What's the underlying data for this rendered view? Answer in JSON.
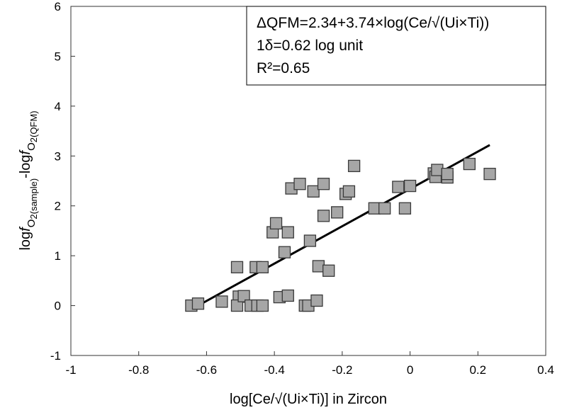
{
  "chart_data": {
    "type": "scatter",
    "xlabel": "log[Ce/√(Ui×Ti)] in Zircon",
    "ylabel": {
      "parts": [
        {
          "text": "log",
          "style": "normal",
          "baseline": "normal"
        },
        {
          "text": "f",
          "style": "italic",
          "baseline": "normal"
        },
        {
          "text": "O",
          "style": "normal",
          "baseline": "sub"
        },
        {
          "text": "2(sample)",
          "style": "normal",
          "baseline": "subsub"
        },
        {
          "text": "-log",
          "style": "normal",
          "baseline": "normal"
        },
        {
          "text": "f",
          "style": "italic",
          "baseline": "normal"
        },
        {
          "text": "O",
          "style": "normal",
          "baseline": "sub"
        },
        {
          "text": "2(QFM)",
          "style": "normal",
          "baseline": "subsub"
        }
      ]
    },
    "xlim": [
      -1,
      0.4
    ],
    "ylim": [
      -1,
      6
    ],
    "xticks": [
      "-1",
      "-0.8",
      "-0.6",
      "-0.4",
      "-0.2",
      "0",
      "0.2",
      "0.4"
    ],
    "yticks": [
      "-1",
      "0",
      "1",
      "2",
      "3",
      "4",
      "5",
      "6"
    ],
    "grid": false,
    "marker": {
      "shape": "square",
      "fill": "#a6a6a6",
      "stroke": "#3a3a3a"
    },
    "points": [
      {
        "x": -0.645,
        "y": 0.0
      },
      {
        "x": -0.625,
        "y": 0.04
      },
      {
        "x": -0.555,
        "y": 0.08
      },
      {
        "x": -0.51,
        "y": 0.77
      },
      {
        "x": -0.505,
        "y": 0.18
      },
      {
        "x": -0.51,
        "y": 0.0
      },
      {
        "x": -0.49,
        "y": 0.19
      },
      {
        "x": -0.47,
        "y": 0.0
      },
      {
        "x": -0.455,
        "y": 0.77
      },
      {
        "x": -0.45,
        "y": 0.0
      },
      {
        "x": -0.435,
        "y": 0.0
      },
      {
        "x": -0.435,
        "y": 0.77
      },
      {
        "x": -0.405,
        "y": 1.47
      },
      {
        "x": -0.395,
        "y": 1.65
      },
      {
        "x": -0.385,
        "y": 0.17
      },
      {
        "x": -0.37,
        "y": 1.07
      },
      {
        "x": -0.36,
        "y": 1.47
      },
      {
        "x": -0.36,
        "y": 0.2
      },
      {
        "x": -0.35,
        "y": 2.35
      },
      {
        "x": -0.325,
        "y": 2.44
      },
      {
        "x": -0.31,
        "y": 0.0
      },
      {
        "x": -0.3,
        "y": 0.0
      },
      {
        "x": -0.295,
        "y": 1.3
      },
      {
        "x": -0.285,
        "y": 2.29
      },
      {
        "x": -0.275,
        "y": 0.1
      },
      {
        "x": -0.27,
        "y": 0.79
      },
      {
        "x": -0.255,
        "y": 1.8
      },
      {
        "x": -0.255,
        "y": 2.44
      },
      {
        "x": -0.24,
        "y": 0.7
      },
      {
        "x": -0.215,
        "y": 1.87
      },
      {
        "x": -0.19,
        "y": 2.24
      },
      {
        "x": -0.18,
        "y": 2.29
      },
      {
        "x": -0.165,
        "y": 2.8
      },
      {
        "x": -0.105,
        "y": 1.95
      },
      {
        "x": -0.075,
        "y": 1.95
      },
      {
        "x": -0.035,
        "y": 2.38
      },
      {
        "x": -0.015,
        "y": 1.95
      },
      {
        "x": 0.0,
        "y": 2.4
      },
      {
        "x": 0.07,
        "y": 2.65
      },
      {
        "x": 0.075,
        "y": 2.58
      },
      {
        "x": 0.08,
        "y": 2.72
      },
      {
        "x": 0.11,
        "y": 2.57
      },
      {
        "x": 0.11,
        "y": 2.64
      },
      {
        "x": 0.175,
        "y": 2.84
      },
      {
        "x": 0.235,
        "y": 2.64
      }
    ],
    "fit_line": {
      "x": [
        -0.625,
        0.235
      ],
      "y": [
        0.0,
        3.22
      ]
    },
    "annotation": {
      "lines": [
        "ΔQFM=2.34+3.74×log(Ce/√(Ui×Ti))",
        "1δ=0.62 log unit",
        "R²=0.65"
      ],
      "placement": "top-right"
    }
  }
}
